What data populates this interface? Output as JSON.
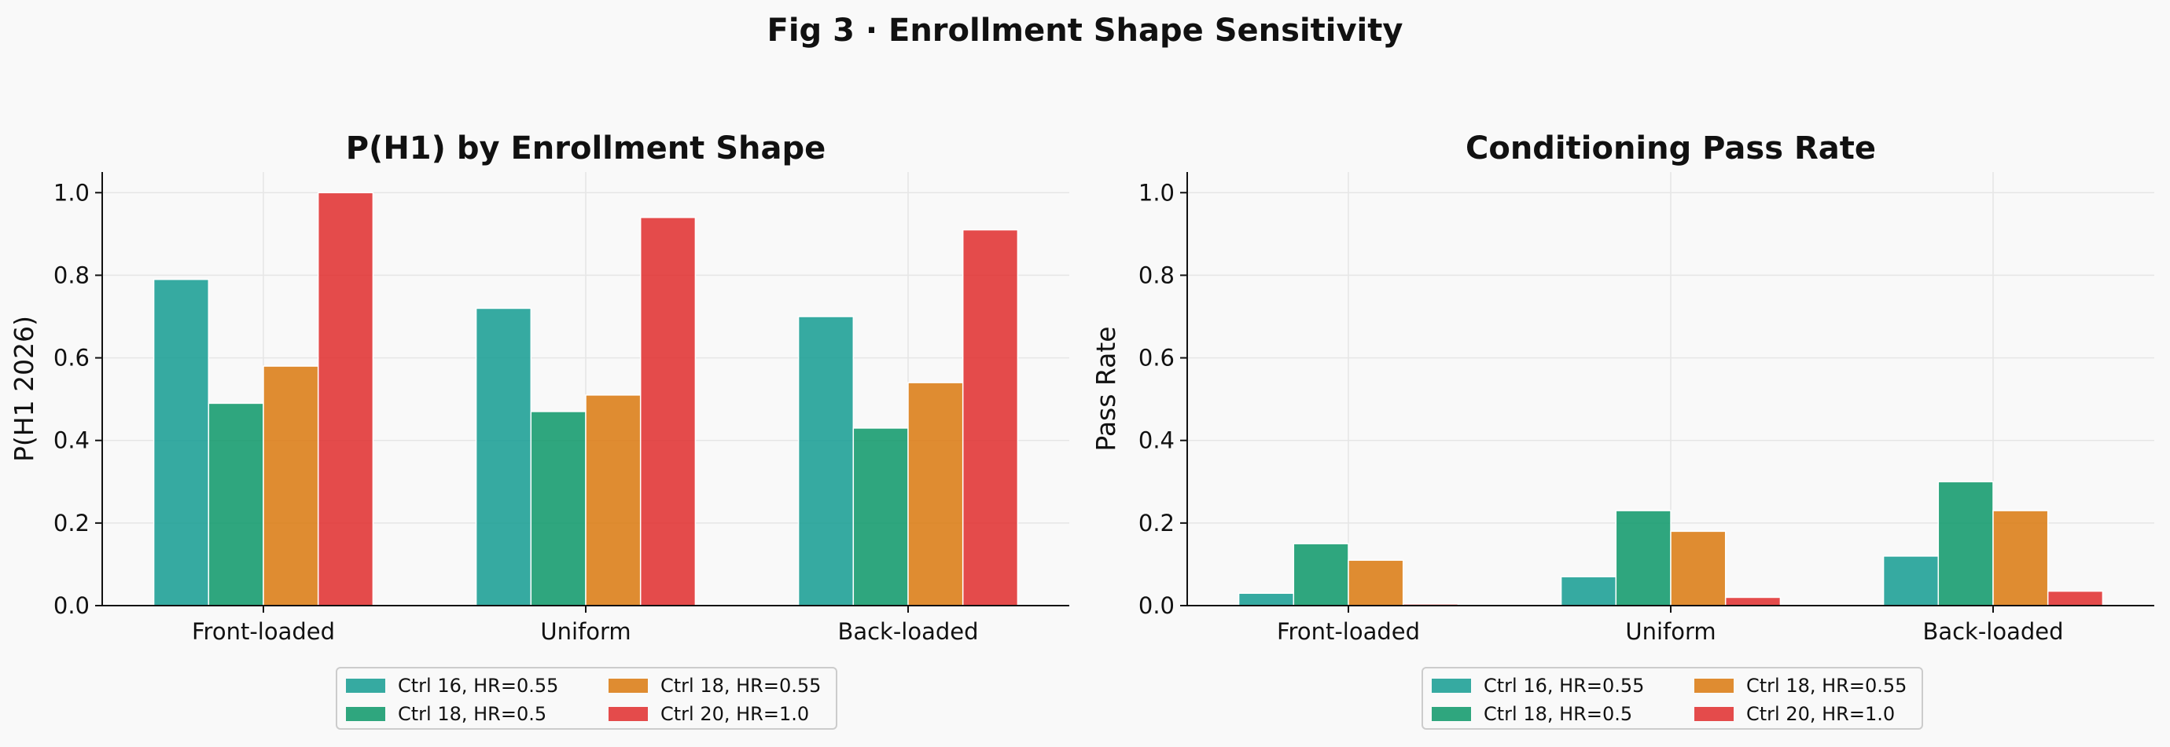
{
  "figure_title": "Fig 3 · Enrollment Shape Sensitivity",
  "colors": [
    "#1a9e94",
    "#129a6c",
    "#db7c14",
    "#e03232"
  ],
  "chart_data": [
    {
      "type": "bar",
      "title": "P(H1) by Enrollment Shape",
      "xlabel": "",
      "ylabel": "P(H1 2026)",
      "ylim": [
        0,
        1.05
      ],
      "yticks": [
        "0.0",
        "0.2",
        "0.4",
        "0.6",
        "0.8",
        "1.0"
      ],
      "grid": true,
      "legend_position": "bottom-center",
      "categories": [
        "Front-loaded",
        "Uniform",
        "Back-loaded"
      ],
      "series": [
        {
          "name": "Ctrl 16, HR=0.55",
          "values": [
            0.79,
            0.72,
            0.7
          ]
        },
        {
          "name": "Ctrl 18, HR=0.5",
          "values": [
            0.49,
            0.47,
            0.43
          ]
        },
        {
          "name": "Ctrl 18, HR=0.55",
          "values": [
            0.58,
            0.51,
            0.54
          ]
        },
        {
          "name": "Ctrl 20, HR=1.0",
          "values": [
            1.0,
            0.94,
            0.91
          ]
        }
      ]
    },
    {
      "type": "bar",
      "title": "Conditioning Pass Rate",
      "xlabel": "",
      "ylabel": "Pass Rate",
      "ylim": [
        0,
        1.05
      ],
      "yticks": [
        "0.0",
        "0.2",
        "0.4",
        "0.6",
        "0.8",
        "1.0"
      ],
      "grid": true,
      "legend_position": "bottom-center",
      "categories": [
        "Front-loaded",
        "Uniform",
        "Back-loaded"
      ],
      "series": [
        {
          "name": "Ctrl 16, HR=0.55",
          "values": [
            0.03,
            0.07,
            0.12
          ]
        },
        {
          "name": "Ctrl 18, HR=0.5",
          "values": [
            0.15,
            0.23,
            0.3
          ]
        },
        {
          "name": "Ctrl 18, HR=0.55",
          "values": [
            0.11,
            0.18,
            0.23
          ]
        },
        {
          "name": "Ctrl 20, HR=1.0",
          "values": [
            0.004,
            0.02,
            0.035
          ]
        }
      ]
    }
  ]
}
